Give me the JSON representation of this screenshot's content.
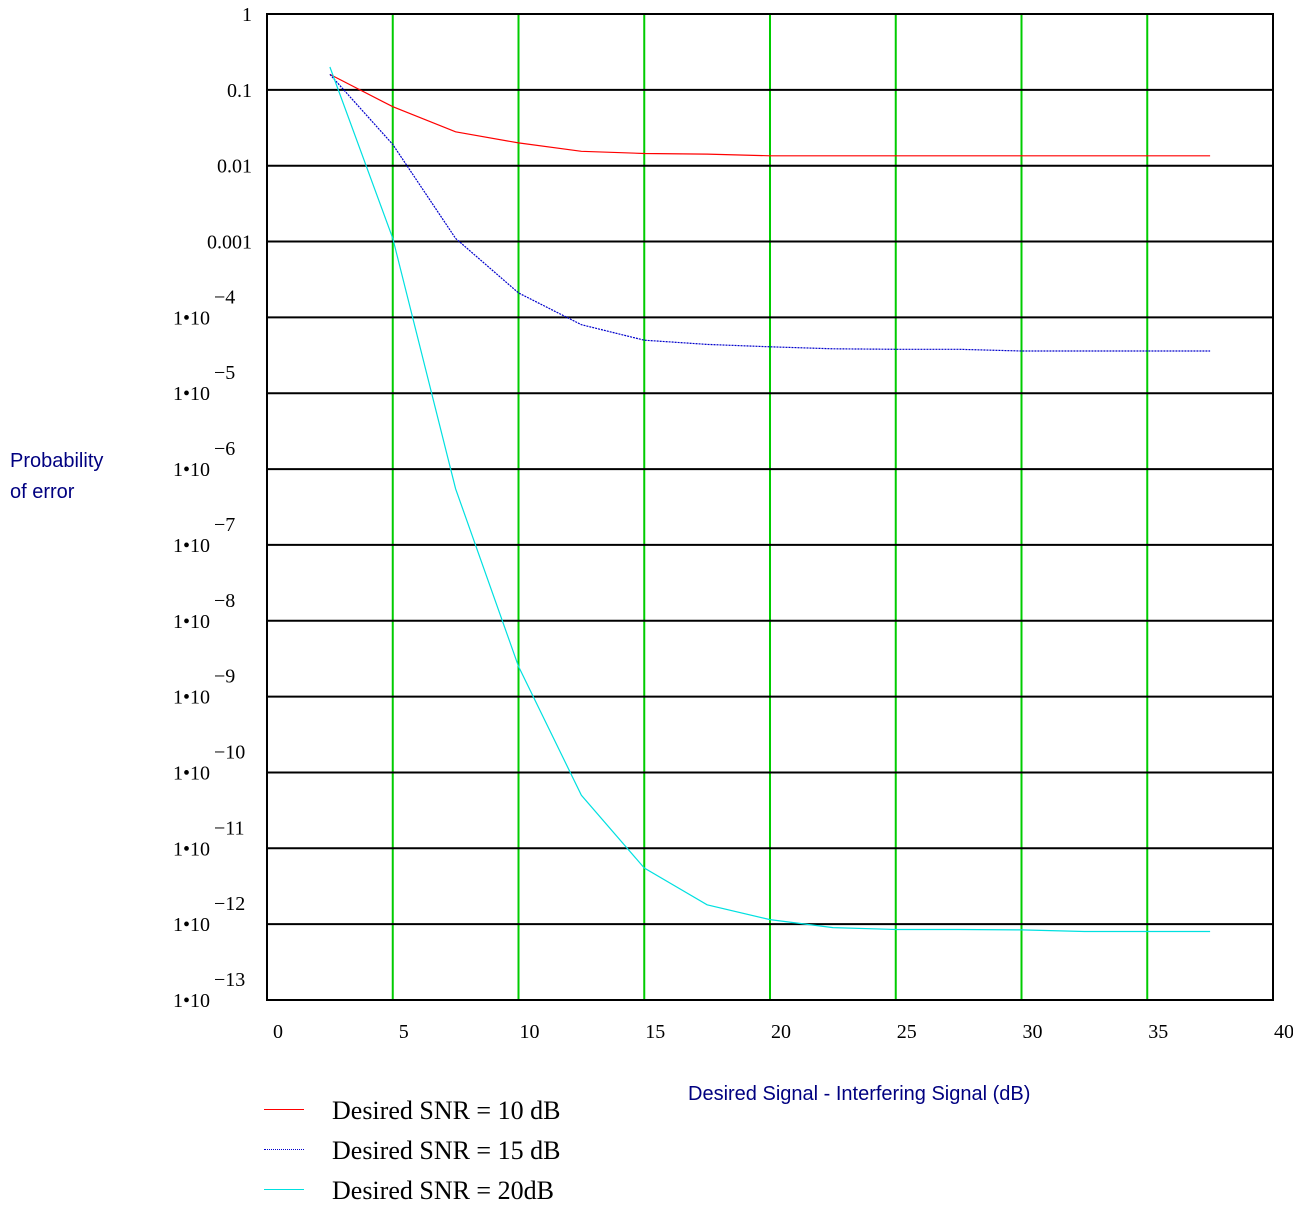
{
  "chart_data": {
    "type": "line",
    "ylabel_lines": [
      "Probability",
      "of error"
    ],
    "xlabel": "Desired Signal - Interfering Signal (dB)",
    "xlim": [
      0,
      40
    ],
    "ylim": [
      1e-13,
      1
    ],
    "yscale": "log",
    "grid": {
      "x": true,
      "y": true,
      "x_color": "#00cc00",
      "y_color": "#000000"
    },
    "x_ticks": [
      "0",
      "5",
      "10",
      "15",
      "20",
      "25",
      "30",
      "35",
      "40"
    ],
    "y_ticks": [
      {
        "value": 1,
        "base": "1",
        "exp": ""
      },
      {
        "value": 0.1,
        "base": "0.1",
        "exp": ""
      },
      {
        "value": 0.01,
        "base": "0.01",
        "exp": ""
      },
      {
        "value": 0.001,
        "base": "0.001",
        "exp": ""
      },
      {
        "value": 0.0001,
        "base": "1•10",
        "exp": "−4"
      },
      {
        "value": 1e-05,
        "base": "1•10",
        "exp": "−5"
      },
      {
        "value": 1e-06,
        "base": "1•10",
        "exp": "−6"
      },
      {
        "value": 1e-07,
        "base": "1•10",
        "exp": "−7"
      },
      {
        "value": 1e-08,
        "base": "1•10",
        "exp": "−8"
      },
      {
        "value": 1e-09,
        "base": "1•10",
        "exp": "−9"
      },
      {
        "value": 1e-10,
        "base": "1•10",
        "exp": "−10"
      },
      {
        "value": 1e-11,
        "base": "1•10",
        "exp": "−11"
      },
      {
        "value": 1e-12,
        "base": "1•10",
        "exp": "−12"
      },
      {
        "value": 1e-13,
        "base": "1•10",
        "exp": "−13"
      }
    ],
    "x": [
      2.5,
      5,
      7.5,
      10,
      12.5,
      15,
      17.5,
      20,
      22.5,
      25,
      27.5,
      30,
      32.5,
      35,
      37.5
    ],
    "series": [
      {
        "name": "Desired SNR = 10 dB",
        "color": "#ff0000",
        "dash": "solid",
        "values": [
          0.16,
          0.06,
          0.028,
          0.02,
          0.0155,
          0.0145,
          0.0142,
          0.0135,
          0.0135,
          0.0135,
          0.0135,
          0.0135,
          0.0135,
          0.0135,
          0.0135
        ]
      },
      {
        "name": "Desired SNR = 15 dB",
        "color": "#0000cc",
        "dash": "dotted",
        "values": [
          0.16,
          0.019,
          0.0011,
          0.00021,
          8e-05,
          5e-05,
          4.4e-05,
          4.1e-05,
          3.85e-05,
          3.8e-05,
          3.8e-05,
          3.6e-05,
          3.6e-05,
          3.6e-05,
          3.6e-05
        ]
      },
      {
        "name": "Desired SNR = 20dB",
        "color": "#00e0e0",
        "dash": "solid",
        "values": [
          0.2,
          0.0011,
          5.5e-07,
          2.5e-09,
          5e-11,
          5.5e-12,
          1.8e-12,
          1.15e-12,
          9e-13,
          8.5e-13,
          8.5e-13,
          8.4e-13,
          8e-13,
          8e-13,
          8e-13
        ]
      }
    ]
  }
}
